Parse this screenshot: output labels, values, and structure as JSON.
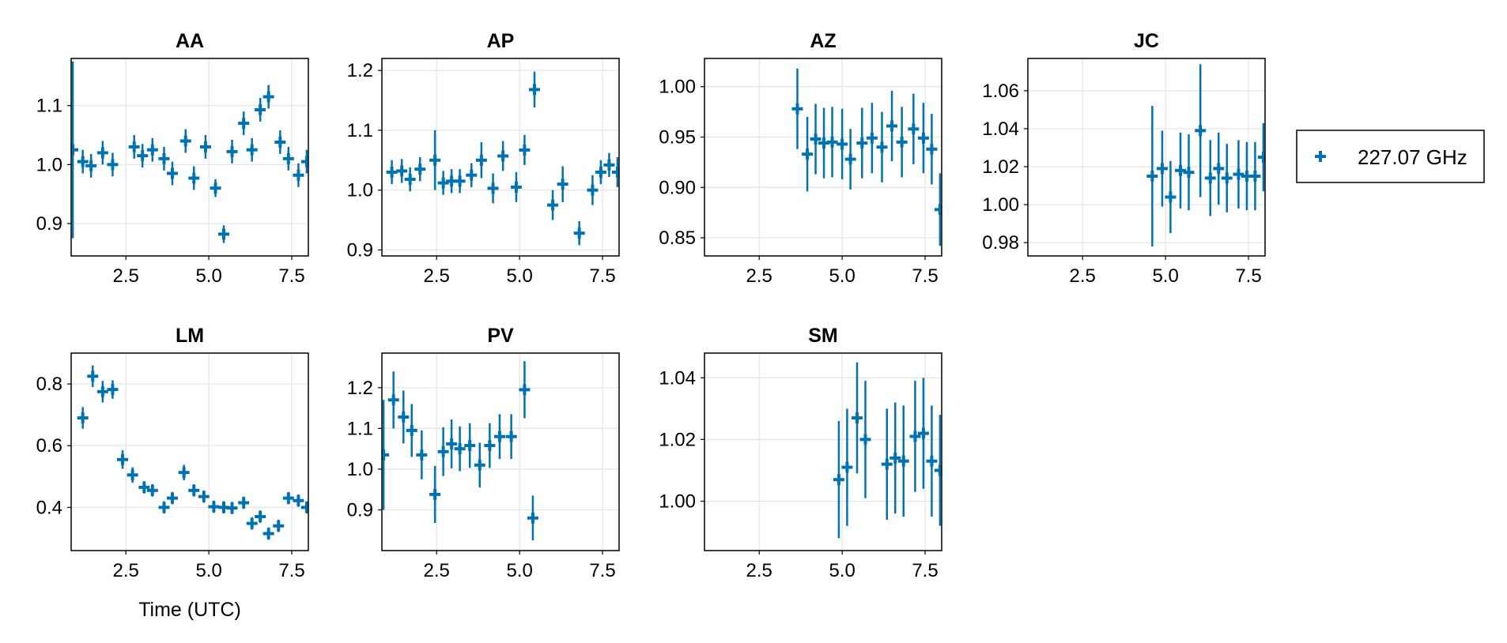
{
  "chart_data": {
    "type": "scatter",
    "marker": "cross with error bars",
    "color": "#0072b2",
    "xlabel": "Time (UTC)",
    "legend": {
      "placement": "right",
      "entries": [
        {
          "label": "227.07 GHz",
          "color": "#0072b2"
        }
      ]
    },
    "grid": true,
    "panels": [
      {
        "title": "AA",
        "xlim": [
          0.85,
          8.0
        ],
        "ylim": [
          0.845,
          1.18
        ],
        "xticks": [
          2.5,
          5.0,
          7.5
        ],
        "xtick_labels": [
          "2.5",
          "5.0",
          "7.5"
        ],
        "yticks": [
          0.9,
          1.0,
          1.1
        ],
        "ytick_labels": [
          "0.9",
          "1.0",
          "1.1"
        ],
        "points": [
          {
            "x": 0.9,
            "y": 1.025,
            "err": 0.15
          },
          {
            "x": 1.2,
            "y": 1.005,
            "err": 0.02
          },
          {
            "x": 1.45,
            "y": 0.998,
            "err": 0.02
          },
          {
            "x": 1.8,
            "y": 1.02,
            "err": 0.02
          },
          {
            "x": 2.1,
            "y": 1.0,
            "err": 0.02
          },
          {
            "x": 2.75,
            "y": 1.03,
            "err": 0.02
          },
          {
            "x": 3.0,
            "y": 1.015,
            "err": 0.02
          },
          {
            "x": 3.3,
            "y": 1.025,
            "err": 0.02
          },
          {
            "x": 3.65,
            "y": 1.01,
            "err": 0.02
          },
          {
            "x": 3.9,
            "y": 0.985,
            "err": 0.02
          },
          {
            "x": 4.3,
            "y": 1.04,
            "err": 0.02
          },
          {
            "x": 4.55,
            "y": 0.977,
            "err": 0.02
          },
          {
            "x": 4.9,
            "y": 1.03,
            "err": 0.02
          },
          {
            "x": 5.2,
            "y": 0.96,
            "err": 0.015
          },
          {
            "x": 5.45,
            "y": 0.882,
            "err": 0.015
          },
          {
            "x": 5.7,
            "y": 1.022,
            "err": 0.02
          },
          {
            "x": 6.05,
            "y": 1.07,
            "err": 0.02
          },
          {
            "x": 6.3,
            "y": 1.025,
            "err": 0.02
          },
          {
            "x": 6.55,
            "y": 1.093,
            "err": 0.02
          },
          {
            "x": 6.8,
            "y": 1.115,
            "err": 0.02
          },
          {
            "x": 7.15,
            "y": 1.038,
            "err": 0.02
          },
          {
            "x": 7.4,
            "y": 1.01,
            "err": 0.02
          },
          {
            "x": 7.7,
            "y": 0.982,
            "err": 0.02
          },
          {
            "x": 7.95,
            "y": 1.005,
            "err": 0.02
          }
        ]
      },
      {
        "title": "AP",
        "xlim": [
          0.85,
          8.0
        ],
        "ylim": [
          0.89,
          1.22
        ],
        "xticks": [
          2.5,
          5.0,
          7.5
        ],
        "xtick_labels": [
          "2.5",
          "5.0",
          "7.5"
        ],
        "yticks": [
          0.9,
          1.0,
          1.1,
          1.2
        ],
        "ytick_labels": [
          "0.9",
          "1.0",
          "1.1",
          "1.2"
        ],
        "points": [
          {
            "x": 1.15,
            "y": 1.03,
            "err": 0.02
          },
          {
            "x": 1.45,
            "y": 1.032,
            "err": 0.02
          },
          {
            "x": 1.7,
            "y": 1.018,
            "err": 0.02
          },
          {
            "x": 2.0,
            "y": 1.035,
            "err": 0.02
          },
          {
            "x": 2.45,
            "y": 1.05,
            "err": 0.05
          },
          {
            "x": 2.7,
            "y": 1.012,
            "err": 0.02
          },
          {
            "x": 2.95,
            "y": 1.015,
            "err": 0.02
          },
          {
            "x": 3.2,
            "y": 1.015,
            "err": 0.02
          },
          {
            "x": 3.55,
            "y": 1.025,
            "err": 0.02
          },
          {
            "x": 3.85,
            "y": 1.05,
            "err": 0.03
          },
          {
            "x": 4.2,
            "y": 1.003,
            "err": 0.025
          },
          {
            "x": 4.5,
            "y": 1.057,
            "err": 0.025
          },
          {
            "x": 4.9,
            "y": 1.005,
            "err": 0.025
          },
          {
            "x": 5.15,
            "y": 1.067,
            "err": 0.025
          },
          {
            "x": 5.45,
            "y": 1.168,
            "err": 0.03
          },
          {
            "x": 6.0,
            "y": 0.975,
            "err": 0.025
          },
          {
            "x": 6.3,
            "y": 1.01,
            "err": 0.03
          },
          {
            "x": 6.8,
            "y": 0.928,
            "err": 0.02
          },
          {
            "x": 7.2,
            "y": 1.0,
            "err": 0.025
          },
          {
            "x": 7.45,
            "y": 1.03,
            "err": 0.02
          },
          {
            "x": 7.7,
            "y": 1.042,
            "err": 0.02
          },
          {
            "x": 7.95,
            "y": 1.03,
            "err": 0.025
          }
        ]
      },
      {
        "title": "AZ",
        "xlim": [
          0.85,
          8.0
        ],
        "ylim": [
          0.832,
          1.028
        ],
        "xticks": [
          2.5,
          5.0,
          7.5
        ],
        "xtick_labels": [
          "2.5",
          "5.0",
          "7.5"
        ],
        "yticks": [
          0.85,
          0.9,
          0.95,
          1.0
        ],
        "ytick_labels": [
          "0.85",
          "0.90",
          "0.95",
          "1.00"
        ],
        "points": [
          {
            "x": 3.65,
            "y": 0.978,
            "err": 0.04
          },
          {
            "x": 3.95,
            "y": 0.933,
            "err": 0.037
          },
          {
            "x": 4.2,
            "y": 0.948,
            "err": 0.035
          },
          {
            "x": 4.45,
            "y": 0.944,
            "err": 0.035
          },
          {
            "x": 4.7,
            "y": 0.945,
            "err": 0.035
          },
          {
            "x": 5.0,
            "y": 0.943,
            "err": 0.035
          },
          {
            "x": 5.25,
            "y": 0.928,
            "err": 0.03
          },
          {
            "x": 5.6,
            "y": 0.944,
            "err": 0.035
          },
          {
            "x": 5.9,
            "y": 0.949,
            "err": 0.035
          },
          {
            "x": 6.2,
            "y": 0.94,
            "err": 0.035
          },
          {
            "x": 6.5,
            "y": 0.961,
            "err": 0.035
          },
          {
            "x": 6.8,
            "y": 0.945,
            "err": 0.035
          },
          {
            "x": 7.15,
            "y": 0.958,
            "err": 0.035
          },
          {
            "x": 7.45,
            "y": 0.949,
            "err": 0.035
          },
          {
            "x": 7.7,
            "y": 0.938,
            "err": 0.035
          },
          {
            "x": 7.95,
            "y": 0.878,
            "err": 0.036
          }
        ]
      },
      {
        "title": "JC",
        "xlim": [
          0.85,
          8.0
        ],
        "ylim": [
          0.973,
          1.077
        ],
        "xticks": [
          2.5,
          5.0,
          7.5
        ],
        "xtick_labels": [
          "2.5",
          "5.0",
          "7.5"
        ],
        "yticks": [
          0.98,
          1.0,
          1.02,
          1.04,
          1.06
        ],
        "ytick_labels": [
          "0.98",
          "1.00",
          "1.02",
          "1.04",
          "1.06"
        ],
        "points": [
          {
            "x": 4.6,
            "y": 1.015,
            "err": 0.037
          },
          {
            "x": 4.9,
            "y": 1.019,
            "err": 0.02
          },
          {
            "x": 5.15,
            "y": 1.004,
            "err": 0.019
          },
          {
            "x": 5.45,
            "y": 1.018,
            "err": 0.02
          },
          {
            "x": 5.7,
            "y": 1.017,
            "err": 0.02
          },
          {
            "x": 6.05,
            "y": 1.039,
            "err": 0.035
          },
          {
            "x": 6.35,
            "y": 1.014,
            "err": 0.02
          },
          {
            "x": 6.6,
            "y": 1.019,
            "err": 0.019
          },
          {
            "x": 6.85,
            "y": 1.014,
            "err": 0.018
          },
          {
            "x": 7.2,
            "y": 1.016,
            "err": 0.018
          },
          {
            "x": 7.45,
            "y": 1.015,
            "err": 0.018
          },
          {
            "x": 7.7,
            "y": 1.015,
            "err": 0.018
          },
          {
            "x": 7.95,
            "y": 1.025,
            "err": 0.018
          }
        ]
      },
      {
        "title": "LM",
        "xlim": [
          0.85,
          8.0
        ],
        "ylim": [
          0.26,
          0.9
        ],
        "xticks": [
          2.5,
          5.0,
          7.5
        ],
        "xtick_labels": [
          "2.5",
          "5.0",
          "7.5"
        ],
        "yticks": [
          0.4,
          0.6,
          0.8
        ],
        "ytick_labels": [
          "0.4",
          "0.6",
          "0.8"
        ],
        "points": [
          {
            "x": 1.2,
            "y": 0.69,
            "err": 0.035
          },
          {
            "x": 1.5,
            "y": 0.825,
            "err": 0.035
          },
          {
            "x": 1.8,
            "y": 0.775,
            "err": 0.035
          },
          {
            "x": 2.1,
            "y": 0.782,
            "err": 0.03
          },
          {
            "x": 2.4,
            "y": 0.555,
            "err": 0.03
          },
          {
            "x": 2.7,
            "y": 0.505,
            "err": 0.025
          },
          {
            "x": 3.05,
            "y": 0.465,
            "err": 0.02
          },
          {
            "x": 3.3,
            "y": 0.455,
            "err": 0.02
          },
          {
            "x": 3.65,
            "y": 0.4,
            "err": 0.02
          },
          {
            "x": 3.9,
            "y": 0.43,
            "err": 0.02
          },
          {
            "x": 4.25,
            "y": 0.513,
            "err": 0.025
          },
          {
            "x": 4.55,
            "y": 0.455,
            "err": 0.02
          },
          {
            "x": 4.85,
            "y": 0.435,
            "err": 0.02
          },
          {
            "x": 5.15,
            "y": 0.402,
            "err": 0.02
          },
          {
            "x": 5.45,
            "y": 0.4,
            "err": 0.02
          },
          {
            "x": 5.7,
            "y": 0.398,
            "err": 0.02
          },
          {
            "x": 6.05,
            "y": 0.415,
            "err": 0.02
          },
          {
            "x": 6.3,
            "y": 0.348,
            "err": 0.02
          },
          {
            "x": 6.55,
            "y": 0.37,
            "err": 0.02
          },
          {
            "x": 6.8,
            "y": 0.315,
            "err": 0.02
          },
          {
            "x": 7.1,
            "y": 0.34,
            "err": 0.02
          },
          {
            "x": 7.4,
            "y": 0.43,
            "err": 0.02
          },
          {
            "x": 7.7,
            "y": 0.422,
            "err": 0.02
          },
          {
            "x": 7.95,
            "y": 0.4,
            "err": 0.02
          }
        ]
      },
      {
        "title": "PV",
        "xlim": [
          0.85,
          8.0
        ],
        "ylim": [
          0.8,
          1.285
        ],
        "xticks": [
          2.5,
          5.0,
          7.5
        ],
        "xtick_labels": [
          "2.5",
          "5.0",
          "7.5"
        ],
        "yticks": [
          0.9,
          1.0,
          1.1,
          1.2
        ],
        "ytick_labels": [
          "0.9",
          "1.0",
          "1.1",
          "1.2"
        ],
        "points": [
          {
            "x": 0.9,
            "y": 1.035,
            "err": 0.135
          },
          {
            "x": 1.2,
            "y": 1.17,
            "err": 0.07
          },
          {
            "x": 1.5,
            "y": 1.128,
            "err": 0.065
          },
          {
            "x": 1.75,
            "y": 1.095,
            "err": 0.065
          },
          {
            "x": 2.05,
            "y": 1.035,
            "err": 0.06
          },
          {
            "x": 2.45,
            "y": 0.938,
            "err": 0.07
          },
          {
            "x": 2.7,
            "y": 1.043,
            "err": 0.06
          },
          {
            "x": 2.95,
            "y": 1.062,
            "err": 0.06
          },
          {
            "x": 3.2,
            "y": 1.05,
            "err": 0.055
          },
          {
            "x": 3.5,
            "y": 1.058,
            "err": 0.055
          },
          {
            "x": 3.8,
            "y": 1.01,
            "err": 0.055
          },
          {
            "x": 4.1,
            "y": 1.058,
            "err": 0.055
          },
          {
            "x": 4.4,
            "y": 1.08,
            "err": 0.055
          },
          {
            "x": 4.75,
            "y": 1.08,
            "err": 0.055
          },
          {
            "x": 5.15,
            "y": 1.195,
            "err": 0.07
          },
          {
            "x": 5.4,
            "y": 0.88,
            "err": 0.055
          }
        ]
      },
      {
        "title": "SM",
        "xlim": [
          0.85,
          8.0
        ],
        "ylim": [
          0.984,
          1.048
        ],
        "xticks": [
          2.5,
          5.0,
          7.5
        ],
        "xtick_labels": [
          "2.5",
          "5.0",
          "7.5"
        ],
        "yticks": [
          1.0,
          1.02,
          1.04
        ],
        "ytick_labels": [
          "1.00",
          "1.02",
          "1.04"
        ],
        "points": [
          {
            "x": 4.9,
            "y": 1.007,
            "err": 0.019
          },
          {
            "x": 5.15,
            "y": 1.011,
            "err": 0.019
          },
          {
            "x": 5.45,
            "y": 1.027,
            "err": 0.018
          },
          {
            "x": 5.7,
            "y": 1.02,
            "err": 0.019
          },
          {
            "x": 6.35,
            "y": 1.012,
            "err": 0.018
          },
          {
            "x": 6.6,
            "y": 1.014,
            "err": 0.018
          },
          {
            "x": 6.85,
            "y": 1.013,
            "err": 0.018
          },
          {
            "x": 7.2,
            "y": 1.021,
            "err": 0.018
          },
          {
            "x": 7.45,
            "y": 1.022,
            "err": 0.018
          },
          {
            "x": 7.7,
            "y": 1.013,
            "err": 0.018
          },
          {
            "x": 7.95,
            "y": 1.01,
            "err": 0.018
          }
        ]
      }
    ]
  }
}
